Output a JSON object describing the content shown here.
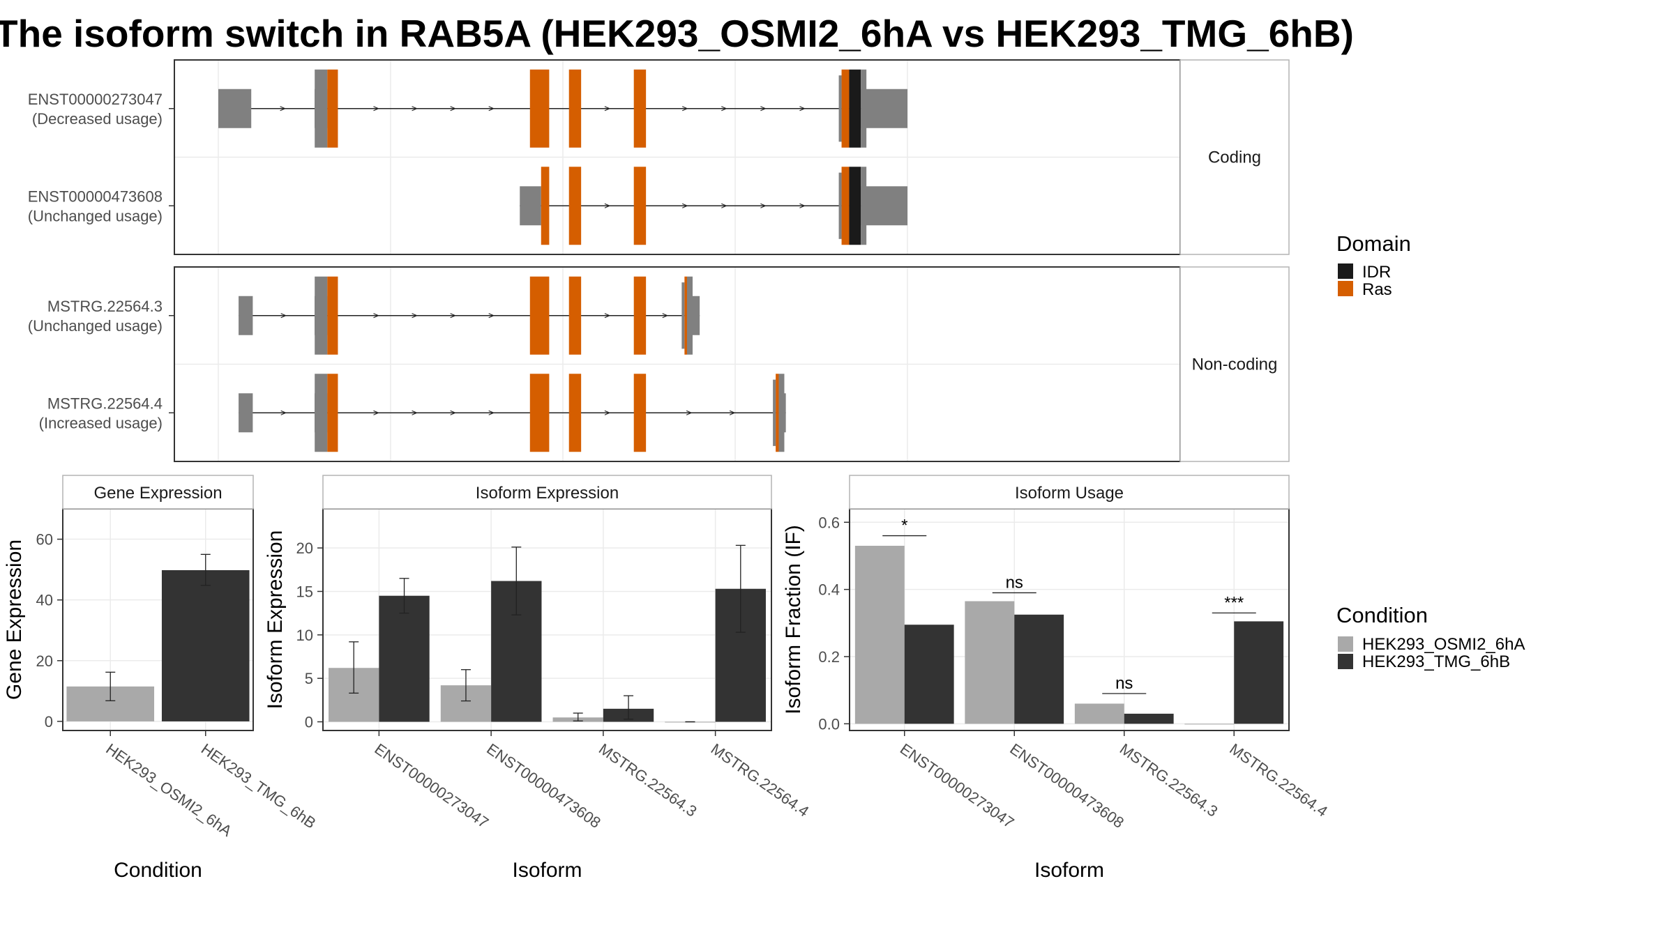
{
  "title": "The isoform switch in RAB5A (HEK293_OSMI2_6hA vs HEK293_TMG_6hB)",
  "colors": {
    "utr": "#808080",
    "cds": "#D55E00",
    "idr": "#1a1a1a",
    "condition_a": "#a9a9a9",
    "condition_b": "#333333",
    "grid": "#ebebeb",
    "strip_fill": "#ffffff",
    "border": "#333333"
  },
  "transcript_plot": {
    "groups": [
      {
        "label": "Coding",
        "transcripts": [
          {
            "id": "ENST00000273047",
            "usage": "(Decreased usage)",
            "utr5": [
              [
                0.0,
                0.065
              ],
              [
                0.19,
                0.215
              ]
            ],
            "cds": [
              [
                0.215,
                0.236
              ],
              [
                0.615,
                0.653
              ],
              [
                0.692,
                0.716
              ],
              [
                0.82,
                0.844
              ]
            ],
            "domain_segments": [
              [
                1.23,
                1.245,
                "Ras"
              ],
              [
                1.245,
                1.268,
                "IDR"
              ]
            ],
            "utr3": [
              [
                1.268,
                1.36
              ]
            ],
            "start": 0.0,
            "end": 1.36
          },
          {
            "id": "ENST00000473608",
            "usage": "(Unchanged usage)",
            "utr5": [
              [
                0.595,
                0.637
              ]
            ],
            "cds": [
              [
                0.637,
                0.653
              ],
              [
                0.692,
                0.716
              ],
              [
                0.82,
                0.844
              ]
            ],
            "domain_segments": [
              [
                1.23,
                1.245,
                "Ras"
              ],
              [
                1.245,
                1.268,
                "IDR"
              ]
            ],
            "utr3": [
              [
                1.268,
                1.36
              ]
            ],
            "start": 0.595,
            "end": 1.36
          }
        ]
      },
      {
        "label": "Non-coding",
        "transcripts": [
          {
            "id": "MSTRG.22564.3",
            "usage": "(Unchanged usage)",
            "utr5": [
              [
                0.04,
                0.068
              ],
              [
                0.19,
                0.215
              ]
            ],
            "cds": [
              [
                0.215,
                0.236
              ],
              [
                0.615,
                0.653
              ],
              [
                0.692,
                0.716
              ],
              [
                0.82,
                0.844
              ]
            ],
            "domain_segments": [
              [
                0.92,
                0.925,
                "Ras"
              ]
            ],
            "utr3": [
              [
                0.925,
                0.95
              ]
            ],
            "start": 0.04,
            "end": 0.95
          },
          {
            "id": "MSTRG.22564.4",
            "usage": "(Increased usage)",
            "utr5": [
              [
                0.04,
                0.068
              ],
              [
                0.19,
                0.215
              ]
            ],
            "cds": [
              [
                0.215,
                0.236
              ],
              [
                0.615,
                0.653
              ],
              [
                0.692,
                0.716
              ],
              [
                0.82,
                0.844
              ]
            ],
            "domain_segments": [
              [
                1.1,
                1.106,
                "Ras"
              ]
            ],
            "utr3": [
              [
                1.106,
                1.12
              ]
            ],
            "start": 0.04,
            "end": 1.12
          }
        ]
      }
    ]
  },
  "legend_domain": {
    "title": "Domain",
    "items": [
      {
        "label": "IDR",
        "color": "#1a1a1a"
      },
      {
        "label": "Ras",
        "color": "#D55E00"
      }
    ]
  },
  "legend_condition": {
    "title": "Condition",
    "items": [
      {
        "label": "HEK293_OSMI2_6hA",
        "color": "#a9a9a9"
      },
      {
        "label": "HEK293_TMG_6hB",
        "color": "#333333"
      }
    ]
  },
  "chart_data": [
    {
      "type": "bar",
      "title": "Gene Expression",
      "xlabel": "Condition",
      "ylabel": "Gene Expression",
      "categories": [
        "HEK293_OSMI2_6hA",
        "HEK293_TMG_6hB"
      ],
      "values": [
        11.5,
        49.8
      ],
      "error_low": [
        6.8,
        44.8
      ],
      "error_high": [
        16.2,
        55.0
      ],
      "ylim": [
        -3,
        70
      ],
      "yticks": [
        0,
        20,
        40,
        60
      ]
    },
    {
      "type": "bar",
      "title": "Isoform Expression",
      "xlabel": "Isoform",
      "ylabel": "Isoform Expression",
      "categories": [
        "ENST00000273047",
        "ENST00000473608",
        "MSTRG.22564.3",
        "MSTRG.22564.4"
      ],
      "series": [
        {
          "name": "HEK293_OSMI2_6hA",
          "values": [
            6.2,
            4.2,
            0.5,
            0.0
          ],
          "error_low": [
            3.3,
            2.4,
            0.1,
            0.0
          ],
          "error_high": [
            9.2,
            6.0,
            1.0,
            0.0
          ]
        },
        {
          "name": "HEK293_TMG_6hB",
          "values": [
            14.5,
            16.2,
            1.5,
            15.3
          ],
          "error_low": [
            12.5,
            12.3,
            0.3,
            10.3
          ],
          "error_high": [
            16.5,
            20.1,
            3.0,
            20.3
          ]
        }
      ],
      "ylim": [
        -1,
        24.5
      ],
      "yticks": [
        0,
        5,
        10,
        15,
        20
      ]
    },
    {
      "type": "bar",
      "title": "Isoform Usage",
      "xlabel": "Isoform",
      "ylabel": "Isoform Fraction (IF)",
      "categories": [
        "ENST00000273047",
        "ENST00000473608",
        "MSTRG.22564.3",
        "MSTRG.22564.4"
      ],
      "series": [
        {
          "name": "HEK293_OSMI2_6hA",
          "values": [
            0.53,
            0.365,
            0.06,
            0.0
          ]
        },
        {
          "name": "HEK293_TMG_6hB",
          "values": [
            0.295,
            0.325,
            0.03,
            0.305
          ]
        }
      ],
      "significance": [
        "*",
        "ns",
        "ns",
        "***"
      ],
      "significance_y": [
        0.56,
        0.39,
        0.09,
        0.33
      ],
      "ylim": [
        -0.02,
        0.64
      ],
      "yticks": [
        0.0,
        0.2,
        0.4,
        0.6
      ],
      "ytick_labels": [
        "0.0",
        "0.2",
        "0.4",
        "0.6"
      ]
    }
  ]
}
